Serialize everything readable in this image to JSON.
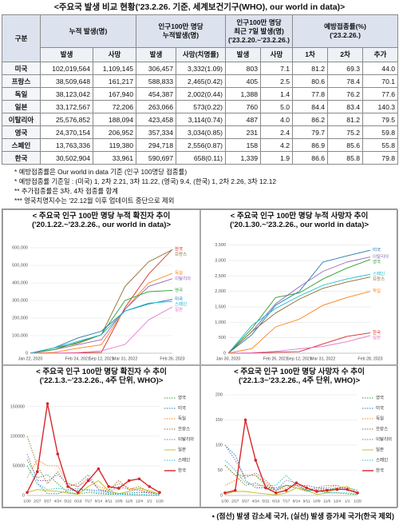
{
  "title": "<주요국 발생 비교 현황('23.2.26. 기준, 세계보건기구(WHO), our world in data)>",
  "table": {
    "group_headers": [
      "구분",
      "누적 발생(명)",
      "인구100만 명당\n누적발생(명)",
      "인구100만 명당\n최근 7일 발생(명)\n('23.2.20.~'23.2.26.)",
      "예방접종률(%)\n('23.2.26.)"
    ],
    "sub_headers": [
      "발생",
      "사망",
      "발생",
      "사망(치명률)",
      "발생",
      "사망",
      "1차",
      "2차",
      "추가"
    ],
    "rows": [
      [
        "미국",
        "102,019,564",
        "1,109,145",
        "306,457",
        "3,332(1.09)",
        "803",
        "7.1",
        "81.2",
        "69.3",
        "44.0"
      ],
      [
        "프랑스",
        "38,509,648",
        "161,217",
        "588,833",
        "2,465(0.42)",
        "405",
        "2.5",
        "80.6",
        "78.4",
        "70.1"
      ],
      [
        "독일",
        "38,123,042",
        "167,940",
        "454,387",
        "2,002(0.44)",
        "1,388",
        "1.4",
        "77.8",
        "76.2",
        "77.6"
      ],
      [
        "일본",
        "33,172,567",
        "72,206",
        "263,066",
        "573(0.22)",
        "760",
        "5.0",
        "84.4",
        "83.4",
        "140.3"
      ],
      [
        "이탈리아",
        "25,576,852",
        "188,094",
        "423,458",
        "3,114(0.74)",
        "487",
        "4.0",
        "86.2",
        "81.2",
        "79.5"
      ],
      [
        "영국",
        "24,370,154",
        "206,952",
        "357,334",
        "3,034(0.85)",
        "231",
        "2.4",
        "79.7",
        "75.2",
        "59.8"
      ],
      [
        "스페인",
        "13,763,336",
        "119,380",
        "294,718",
        "2,556(0.87)",
        "158",
        "4.2",
        "86.9",
        "85.6",
        "55.8"
      ],
      [
        "한국",
        "30,502,904",
        "33,961",
        "590,697",
        "658(0.11)",
        "1,339",
        "1.9",
        "86.6",
        "85.8",
        "79.8"
      ]
    ]
  },
  "notes": [
    "* 예방접종률은 Our world in data 기준 (인구 100명당 접종률)",
    "* 예방접종률 기준일 : (미국) 1, 2차 2.21, 3차 11.22, (영국) 9.4, (한국) 1, 2차 2.26, 3차 12.12",
    "** 추가접종률은 3차, 4차 접종률 합계",
    "*** 영국치명지수는 '22.12월 이후 업데이트 중단으로 제외"
  ],
  "chart_data": [
    {
      "type": "line",
      "title": "< 주요국 인구 100만 명당 누적 확진자 추이\n('20.1.22.~'23.2.26., our world in data)>",
      "categories": [
        "Jan 22, 2020",
        null,
        "Feb 24, 2021",
        "Sep 12, 2021",
        "Mar 31, 2022",
        null,
        "Feb 26, 2023"
      ],
      "ylim": [
        0,
        650000
      ],
      "yticks": [
        0,
        {
          "value": 100000,
          "label": "100,000"
        },
        {
          "value": 200000,
          "label": "200,000"
        },
        {
          "value": 300000,
          "label": "300,000"
        },
        {
          "value": 400000,
          "label": "400,000"
        },
        {
          "value": 500000,
          "label": "500,000"
        },
        {
          "value": 600000,
          "label": "600,000"
        }
      ],
      "grid": true,
      "legend": "end",
      "series": [
        {
          "name": "한국",
          "color": "#d62728",
          "style": "solid",
          "values": [
            0,
            1000,
            2000,
            5000,
            260000,
            450000,
            590697
          ]
        },
        {
          "name": "프랑스",
          "color": "#8c6d31",
          "style": "solid",
          "values": [
            0,
            30000,
            55000,
            105000,
            380000,
            520000,
            588833
          ]
        },
        {
          "name": "독일",
          "color": "#ff7f0e",
          "style": "solid",
          "values": [
            0,
            5000,
            28000,
            48000,
            250000,
            400000,
            454387
          ]
        },
        {
          "name": "이탈리아",
          "color": "#9467bd",
          "style": "solid",
          "values": [
            0,
            20000,
            48000,
            77000,
            250000,
            380000,
            423458
          ]
        },
        {
          "name": "영국",
          "color": "#2ca02c",
          "style": "solid",
          "values": [
            0,
            20000,
            61000,
            105000,
            300000,
            350000,
            357334
          ]
        },
        {
          "name": "미국",
          "color": "#1f77b4",
          "style": "solid",
          "values": [
            0,
            30000,
            86000,
            125000,
            240000,
            280000,
            306457
          ]
        },
        {
          "name": "스페인",
          "color": "#17becf",
          "style": "solid",
          "values": [
            0,
            30000,
            67000,
            105000,
            240000,
            285000,
            294718
          ]
        },
        {
          "name": "일본",
          "color": "#e377c2",
          "style": "solid",
          "values": [
            0,
            500,
            3500,
            13000,
            50000,
            190000,
            263066
          ]
        }
      ]
    },
    {
      "type": "line",
      "title": "< 주요국 인구 100만 명당 누적 사망자 추이\n('20.1.30.~'23.2.26., our world in data)>",
      "categories": [
        "Jan 30, 2020",
        null,
        "Feb 26, 2021",
        "Sep 12, 2021",
        "Mar 31, 2022",
        null,
        "Feb 28, 2023"
      ],
      "ylim": [
        0,
        3700
      ],
      "yticks": [
        0,
        500,
        {
          "value": 1000,
          "label": "1,000"
        },
        {
          "value": 1500,
          "label": "1,500"
        },
        {
          "value": 2000,
          "label": "2,000"
        },
        {
          "value": 2500,
          "label": "2,500"
        },
        {
          "value": 3000,
          "label": "3,000"
        },
        {
          "value": 3500,
          "label": "3,500"
        }
      ],
      "grid": true,
      "legend": "end",
      "series": [
        {
          "name": "미국",
          "color": "#1f77b4",
          "style": "solid",
          "values": [
            0,
            600,
            1550,
            2000,
            2950,
            3150,
            3332
          ]
        },
        {
          "name": "이탈리아",
          "color": "#9467bd",
          "style": "solid",
          "values": [
            0,
            700,
            1600,
            2150,
            2650,
            2950,
            3114
          ]
        },
        {
          "name": "영국",
          "color": "#2ca02c",
          "style": "solid",
          "values": [
            0,
            800,
            1800,
            1950,
            2400,
            2750,
            3034
          ]
        },
        {
          "name": "스페인",
          "color": "#17becf",
          "style": "solid",
          "values": [
            0,
            900,
            1450,
            1850,
            2200,
            2400,
            2556
          ]
        },
        {
          "name": "프랑스",
          "color": "#8c6d31",
          "style": "solid",
          "values": [
            0,
            700,
            1300,
            1750,
            2100,
            2300,
            2465
          ]
        },
        {
          "name": "독일",
          "color": "#ff7f0e",
          "style": "solid",
          "values": [
            0,
            150,
            850,
            1100,
            1550,
            1800,
            2002
          ]
        },
        {
          "name": "한국",
          "color": "#d62728",
          "style": "solid",
          "values": [
            0,
            5,
            30,
            50,
            300,
            540,
            658
          ]
        },
        {
          "name": "일본",
          "color": "#e377c2",
          "style": "solid",
          "values": [
            0,
            15,
            60,
            140,
            220,
            370,
            573
          ]
        }
      ]
    },
    {
      "type": "line",
      "title": "< 주요국 인구 100만 명당 확진자 수 추이\n('22.1.3.~'23.2.26., 4주 단위, WHO)>",
      "categories": [
        "1/30",
        "2/27",
        "3/27",
        "4/24",
        "5/22",
        "6/19",
        "7/17",
        "8/14",
        "9/11",
        "10/9",
        "11/6",
        "12/4",
        "1/1",
        "1/29"
      ],
      "ylim": [
        0,
        170000
      ],
      "yticks": [
        0,
        50000,
        100000,
        150000
      ],
      "grid": true,
      "legend": "right",
      "series": [
        {
          "name": "영국",
          "color": "#2ca02c",
          "style": "dotted",
          "values": [
            60000,
            30000,
            35000,
            20000,
            5000,
            3000,
            5000,
            3000,
            2000,
            2000,
            1500,
            1000,
            800,
            600
          ]
        },
        {
          "name": "미국",
          "color": "#1f77b4",
          "style": "dotted",
          "values": [
            50000,
            20000,
            3000,
            3000,
            8000,
            9000,
            10000,
            8000,
            5000,
            3000,
            4000,
            5000,
            4000,
            3000
          ]
        },
        {
          "name": "독일",
          "color": "#ff7f0e",
          "style": "dotted",
          "values": [
            30000,
            60000,
            50000,
            50000,
            20000,
            15000,
            25000,
            15000,
            10000,
            20000,
            12000,
            10000,
            5000,
            3000
          ]
        },
        {
          "name": "프랑스",
          "color": "#8c6d31",
          "style": "dotted",
          "values": [
            100000,
            50000,
            20000,
            40000,
            15000,
            20000,
            35000,
            10000,
            8000,
            25000,
            10000,
            15000,
            6000,
            2000
          ]
        },
        {
          "name": "이탈리아",
          "color": "#9467bd",
          "style": "dotted",
          "values": [
            70000,
            25000,
            25000,
            35000,
            20000,
            15000,
            30000,
            10000,
            6000,
            15000,
            10000,
            8000,
            4000,
            2000
          ]
        },
        {
          "name": "일본",
          "color": "#bcbd22",
          "style": "solid",
          "values": [
            5000,
            10000,
            8000,
            7000,
            4000,
            2000,
            15000,
            25000,
            8000,
            3000,
            7000,
            12000,
            8000,
            2000
          ]
        },
        {
          "name": "스페인",
          "color": "#17becf",
          "style": "dotted",
          "values": [
            50000,
            20000,
            10000,
            12000,
            10000,
            12000,
            8000,
            5000,
            3000,
            2000,
            2000,
            1500,
            1000,
            800
          ]
        },
        {
          "name": "한국",
          "color": "#d62728",
          "style": "solid",
          "markers": true,
          "values": [
            5000,
            40000,
            155000,
            70000,
            15000,
            5000,
            25000,
            45000,
            15000,
            12000,
            25000,
            28000,
            15000,
            5000
          ]
        }
      ]
    },
    {
      "type": "line",
      "title": "< 주요국 인구 100만 명당 사망자 수 추이\n('22.1.3~'23.2.26., 4주 단위, WHO)>",
      "categories": [
        "1/30",
        "2/27",
        "3/27",
        "4/24",
        "5/22",
        "6/19",
        "7/17",
        "8/14",
        "9/11",
        "10/9",
        "11/6",
        "12/4",
        "1/1",
        "1/29"
      ],
      "ylim": [
        0,
        200
      ],
      "yticks": [
        0,
        50,
        100,
        150,
        200
      ],
      "grid": true,
      "legend": "right",
      "series": [
        {
          "name": "영국",
          "color": "#2ca02c",
          "style": "dotted",
          "values": [
            60,
            40,
            40,
            40,
            20,
            10,
            20,
            15,
            10,
            10,
            5,
            5,
            3,
            2
          ]
        },
        {
          "name": "미국",
          "color": "#1f77b4",
          "style": "dotted",
          "values": [
            100,
            80,
            30,
            15,
            15,
            15,
            20,
            20,
            20,
            15,
            12,
            15,
            15,
            10
          ]
        },
        {
          "name": "독일",
          "color": "#ff7f0e",
          "style": "dotted",
          "values": [
            20,
            30,
            40,
            40,
            25,
            10,
            15,
            20,
            10,
            15,
            15,
            20,
            10,
            5
          ]
        },
        {
          "name": "프랑스",
          "color": "#8c6d31",
          "style": "dotted",
          "values": [
            60,
            40,
            20,
            25,
            15,
            10,
            20,
            15,
            8,
            12,
            10,
            15,
            10,
            5
          ]
        },
        {
          "name": "이탈리아",
          "color": "#9467bd",
          "style": "dotted",
          "values": [
            100,
            70,
            35,
            45,
            30,
            10,
            30,
            25,
            10,
            15,
            20,
            20,
            10,
            5
          ]
        },
        {
          "name": "일본",
          "color": "#bcbd22",
          "style": "solid",
          "values": [
            2,
            8,
            8,
            5,
            3,
            1,
            5,
            15,
            10,
            2,
            5,
            15,
            18,
            5
          ]
        },
        {
          "name": "스페인",
          "color": "#17becf",
          "style": "dotted",
          "values": [
            70,
            50,
            25,
            20,
            20,
            20,
            40,
            20,
            10,
            10,
            5,
            5,
            5,
            3
          ]
        },
        {
          "name": "한국",
          "color": "#d62728",
          "style": "solid",
          "markers": true,
          "values": [
            5,
            10,
            150,
            70,
            15,
            5,
            10,
            25,
            15,
            8,
            10,
            12,
            12,
            5
          ]
        }
      ]
    }
  ],
  "footer": "• (점선) 발생 감소세 국가, (실선) 발생 증가세 국가(한국 제외)"
}
